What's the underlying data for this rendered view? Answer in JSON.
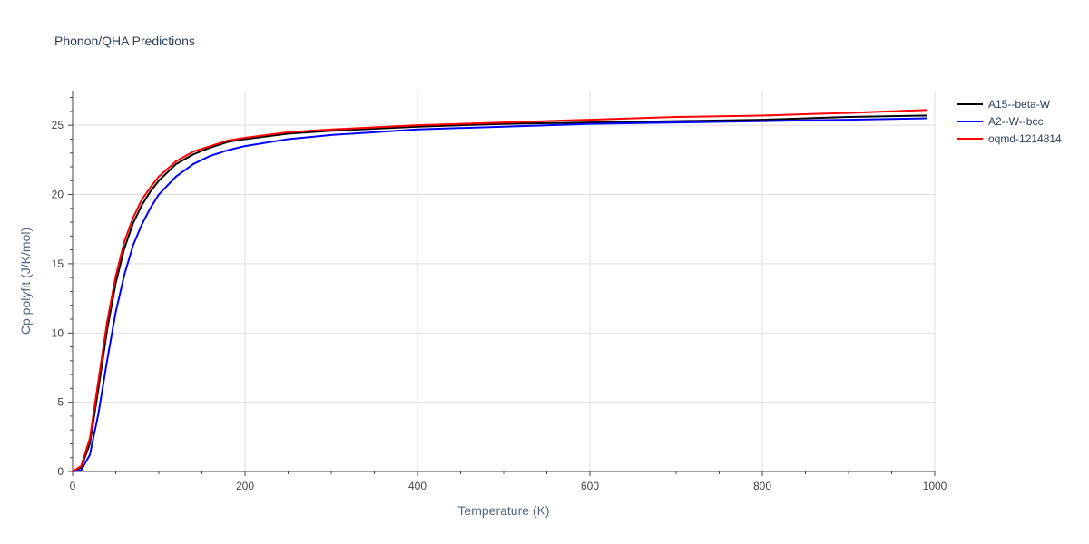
{
  "chart_data": {
    "type": "line",
    "title": "Phonon/QHA Predictions",
    "xlabel": "Temperature (K)",
    "ylabel": "Cp polyfit (J/K/mol)",
    "xlim": [
      0,
      1000
    ],
    "ylim": [
      0,
      27.5
    ],
    "x_ticks": [
      0,
      200,
      400,
      600,
      800,
      1000
    ],
    "x_tick_labels": [
      "0",
      "200",
      "400",
      "600",
      "800",
      "1000"
    ],
    "y_ticks": [
      0,
      5,
      10,
      15,
      20,
      25
    ],
    "y_tick_labels": [
      "0",
      "5",
      "10",
      "15",
      "20",
      "25"
    ],
    "grid": true,
    "legend_position": "top-right",
    "series": [
      {
        "name": "A15--beta-W",
        "color": "#000000",
        "x": [
          0,
          10,
          20,
          30,
          40,
          50,
          60,
          70,
          80,
          90,
          100,
          120,
          140,
          160,
          180,
          200,
          250,
          300,
          400,
          500,
          600,
          700,
          800,
          900,
          990
        ],
        "y": [
          0,
          0.3,
          2.0,
          6.0,
          10.2,
          13.6,
          16.1,
          17.9,
          19.2,
          20.2,
          21.0,
          22.2,
          22.9,
          23.4,
          23.8,
          24.0,
          24.4,
          24.6,
          24.9,
          25.1,
          25.2,
          25.3,
          25.4,
          25.6,
          25.7
        ]
      },
      {
        "name": "A2--W--bcc",
        "color": "#0000ff",
        "x": [
          0,
          10,
          20,
          30,
          40,
          50,
          60,
          70,
          80,
          90,
          100,
          120,
          140,
          160,
          180,
          200,
          250,
          300,
          400,
          500,
          600,
          700,
          800,
          900,
          990
        ],
        "y": [
          0,
          0.1,
          1.2,
          4.2,
          8.0,
          11.5,
          14.2,
          16.3,
          17.8,
          19.0,
          20.0,
          21.3,
          22.2,
          22.8,
          23.2,
          23.5,
          24.0,
          24.3,
          24.7,
          24.9,
          25.1,
          25.2,
          25.3,
          25.4,
          25.5
        ]
      },
      {
        "name": "oqmd-1214814",
        "color": "#ff0000",
        "x": [
          0,
          10,
          20,
          30,
          40,
          50,
          60,
          70,
          80,
          90,
          100,
          120,
          140,
          160,
          180,
          200,
          250,
          300,
          400,
          500,
          600,
          700,
          800,
          900,
          990
        ],
        "y": [
          0,
          0.4,
          2.4,
          6.6,
          10.8,
          14.1,
          16.6,
          18.3,
          19.6,
          20.5,
          21.3,
          22.4,
          23.1,
          23.5,
          23.9,
          24.1,
          24.5,
          24.7,
          25.0,
          25.2,
          25.4,
          25.6,
          25.7,
          25.9,
          26.1
        ]
      }
    ]
  }
}
